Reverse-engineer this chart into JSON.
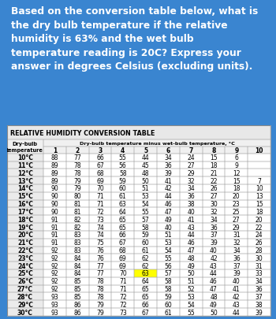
{
  "question": "Based on the conversion table below, what is\nthe dry bulb temperature if the relative\nhumidity is 63% and the wet bulb\ntemperature reading is 20C? Express your\nanswer in degrees Celsius (excluding units).",
  "table_title": "Relative Humidity Conversion Table",
  "col_header_main": "Dry-bulb temperature minus wet-bulb temperature, °C",
  "col_header_left": "Dry-bulb\ntemperature",
  "col_header_nums": [
    "1",
    "2",
    "3",
    "4",
    "5",
    "6",
    "7",
    "8",
    "9",
    "10"
  ],
  "rows": [
    {
      "temp": "10°C",
      "vals": [
        88,
        77,
        66,
        55,
        44,
        34,
        24,
        15,
        6,
        ""
      ]
    },
    {
      "temp": "11°C",
      "vals": [
        89,
        78,
        67,
        56,
        45,
        36,
        27,
        18,
        9,
        ""
      ]
    },
    {
      "temp": "12°C",
      "vals": [
        89,
        78,
        68,
        58,
        48,
        39,
        29,
        21,
        12,
        ""
      ]
    },
    {
      "temp": "13°C",
      "vals": [
        89,
        79,
        69,
        59,
        50,
        41,
        32,
        22,
        15,
        7
      ]
    },
    {
      "temp": "14°C",
      "vals": [
        90,
        79,
        70,
        60,
        51,
        42,
        34,
        26,
        18,
        10
      ]
    },
    {
      "temp": "15°C",
      "vals": [
        90,
        80,
        71,
        61,
        53,
        44,
        36,
        27,
        20,
        13
      ]
    },
    {
      "temp": "16°C",
      "vals": [
        90,
        81,
        71,
        63,
        54,
        46,
        38,
        30,
        23,
        15
      ]
    },
    {
      "temp": "17°C",
      "vals": [
        90,
        81,
        72,
        64,
        55,
        47,
        40,
        32,
        25,
        18
      ]
    },
    {
      "temp": "18°C",
      "vals": [
        91,
        82,
        73,
        65,
        57,
        49,
        41,
        34,
        27,
        20
      ]
    },
    {
      "temp": "19°C",
      "vals": [
        91,
        82,
        74,
        65,
        58,
        40,
        43,
        36,
        29,
        22
      ]
    },
    {
      "temp": "20°C",
      "vals": [
        91,
        83,
        74,
        66,
        59,
        51,
        44,
        37,
        31,
        24
      ]
    },
    {
      "temp": "21°C",
      "vals": [
        91,
        83,
        75,
        67,
        60,
        53,
        46,
        39,
        32,
        26
      ]
    },
    {
      "temp": "22°C",
      "vals": [
        92,
        83,
        76,
        68,
        61,
        54,
        47,
        40,
        34,
        28
      ]
    },
    {
      "temp": "23°C",
      "vals": [
        92,
        84,
        76,
        69,
        62,
        55,
        48,
        42,
        36,
        30
      ]
    },
    {
      "temp": "24°C",
      "vals": [
        92,
        84,
        77,
        69,
        62,
        56,
        49,
        43,
        37,
        31
      ]
    },
    {
      "temp": "25°C",
      "vals": [
        92,
        84,
        77,
        70,
        63,
        57,
        50,
        44,
        39,
        33
      ]
    },
    {
      "temp": "26°C",
      "vals": [
        92,
        85,
        78,
        71,
        64,
        58,
        51,
        46,
        40,
        34
      ]
    },
    {
      "temp": "27°C",
      "vals": [
        92,
        85,
        78,
        71,
        65,
        58,
        52,
        47,
        41,
        36
      ]
    },
    {
      "temp": "28°C",
      "vals": [
        93,
        85,
        78,
        72,
        65,
        59,
        53,
        48,
        42,
        37
      ]
    },
    {
      "temp": "29°C",
      "vals": [
        93,
        86,
        79,
        72,
        66,
        60,
        54,
        49,
        43,
        38
      ]
    },
    {
      "temp": "30°C",
      "vals": [
        93,
        86,
        79,
        73,
        67,
        61,
        55,
        50,
        44,
        39
      ]
    }
  ],
  "bg_color": "#3A85D0",
  "table_bg": "#FFFFFF",
  "question_color": "#FFFFFF",
  "highlight_row": 15,
  "highlight_col": 4,
  "title_bg": "#E8E8E8",
  "header_bg": "#D8D8D8",
  "left_col_bg": "#EBEBEB",
  "alt_row_bg": "#FFFFFF"
}
